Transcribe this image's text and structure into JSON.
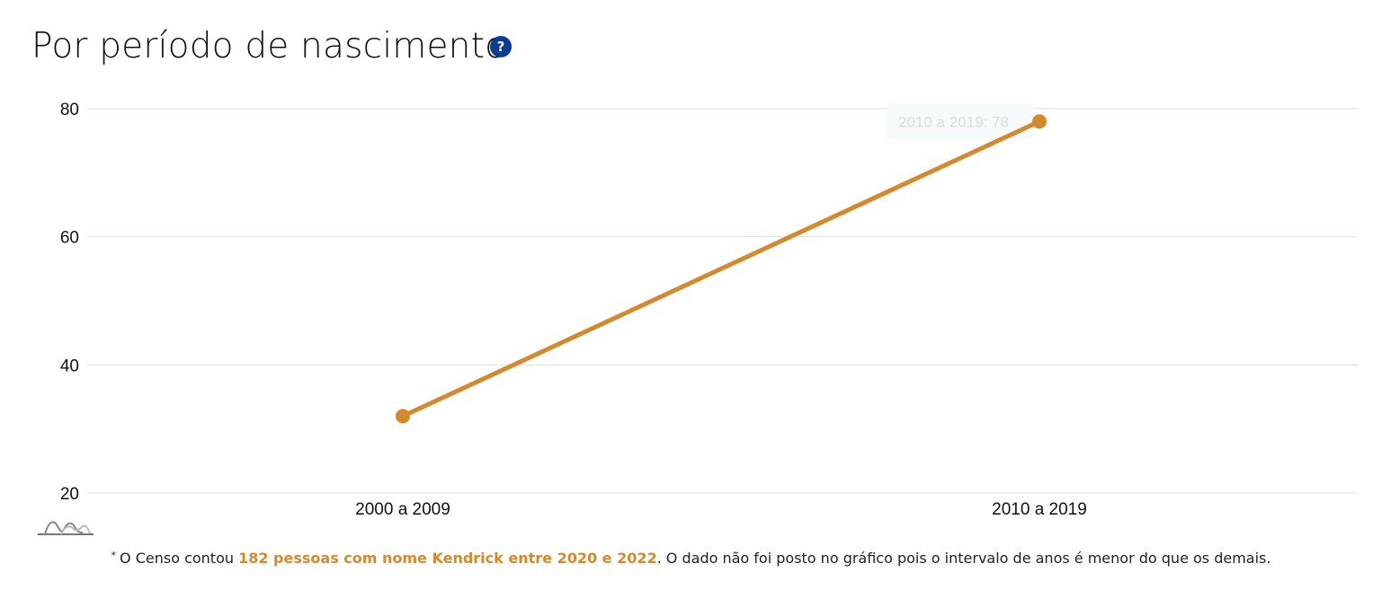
{
  "header": {
    "title": "Por período de nascimento",
    "help_glyph": "?",
    "help_icon": "question-circle-icon"
  },
  "colors": {
    "line": "#d4892c",
    "grid": "#dedede",
    "help": "#0a3d91"
  },
  "chart_data": {
    "type": "line",
    "title": "Por período de nascimento",
    "xlabel": "",
    "ylabel": "",
    "categories": [
      "2000 a 2009",
      "2010 a 2019"
    ],
    "values": [
      32,
      78
    ],
    "ylim": [
      20,
      80
    ],
    "yticks": [
      "20",
      "40",
      "60",
      "80"
    ],
    "grid": true,
    "legend": "none",
    "tooltip": "2010 a 2019: 78"
  },
  "footnote": {
    "asterisk": "*",
    "prefix": "O Censo contou ",
    "highlight": "182 pessoas com nome Kendrick entre 2020 e 2022",
    "suffix": ". O dado não foi posto no gráfico pois o intervalo de anos é menor do que os demais."
  },
  "logo_icon": "chart-logo-icon"
}
